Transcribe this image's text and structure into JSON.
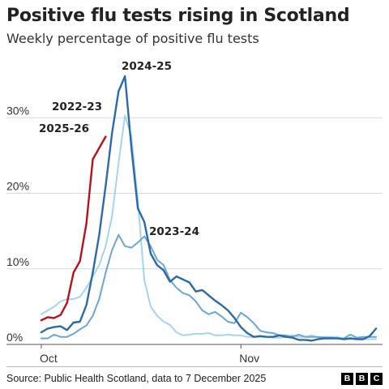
{
  "title": "Positive flu tests rising in Scotland",
  "subtitle": "Weekly percentage of positive flu tests",
  "source": "Source: Public Health Scotland, data to 7 December 2025",
  "logo": [
    "B",
    "B",
    "C"
  ],
  "chart_data": {
    "type": "line",
    "title": "Positive flu tests rising in Scotland",
    "subtitle": "Weekly percentage of positive flu tests",
    "x_unit": "days since 1 Oct",
    "x_ticks": [
      {
        "label": "Oct",
        "x": 0
      },
      {
        "label": "Nov",
        "x": 31
      }
    ],
    "xlim": [
      -1,
      53
    ],
    "ylim": [
      0,
      37
    ],
    "y_ticks": [
      {
        "label": "0%",
        "y": 0
      },
      {
        "label": "10%",
        "y": 10
      },
      {
        "label": "20%",
        "y": 20
      },
      {
        "label": "30%",
        "y": 30
      }
    ],
    "grid": true,
    "series": [
      {
        "name": "2022-23",
        "color": "#a6d3f0",
        "width": 2,
        "points": [
          [
            0,
            4
          ],
          [
            2,
            5
          ],
          [
            3,
            5.7
          ],
          [
            4,
            6
          ],
          [
            5,
            6
          ],
          [
            6,
            6.3
          ],
          [
            7,
            7.5
          ],
          [
            8,
            9
          ],
          [
            9,
            10.5
          ],
          [
            10,
            13
          ],
          [
            11,
            17
          ],
          [
            12,
            24
          ],
          [
            13,
            30.3
          ],
          [
            14,
            27.5
          ],
          [
            15,
            19
          ],
          [
            16,
            8.5
          ],
          [
            17,
            5
          ],
          [
            18,
            3.8
          ],
          [
            19,
            3
          ],
          [
            20,
            2.6
          ],
          [
            21,
            1.6
          ],
          [
            22,
            1.2
          ],
          [
            23,
            1.3
          ],
          [
            24,
            1.4
          ],
          [
            25,
            1.4
          ],
          [
            26,
            1.5
          ],
          [
            27,
            1.2
          ],
          [
            28,
            1.2
          ],
          [
            29,
            1.3
          ],
          [
            30,
            1.2
          ],
          [
            31,
            1.2
          ],
          [
            32,
            1
          ],
          [
            33,
            1
          ],
          [
            34,
            1
          ],
          [
            35,
            1
          ],
          [
            36,
            0.9
          ],
          [
            37,
            0.9
          ],
          [
            38,
            1
          ],
          [
            39,
            1.2
          ],
          [
            40,
            1
          ],
          [
            41,
            1
          ],
          [
            42,
            1.2
          ],
          [
            43,
            0.9
          ],
          [
            44,
            1
          ],
          [
            45,
            1
          ],
          [
            46,
            1
          ],
          [
            47,
            0.7
          ],
          [
            48,
            0.7
          ],
          [
            49,
            0.8
          ],
          [
            50,
            0.7
          ],
          [
            51,
            0.7
          ],
          [
            52,
            0.7
          ]
        ]
      },
      {
        "name": "2023-24",
        "color": "#6aa7d6",
        "width": 2,
        "points": [
          [
            0,
            0.8
          ],
          [
            1,
            0.8
          ],
          [
            2,
            1.3
          ],
          [
            3,
            1
          ],
          [
            4,
            1
          ],
          [
            5,
            1.4
          ],
          [
            6,
            2
          ],
          [
            7,
            2.5
          ],
          [
            8,
            3.8
          ],
          [
            9,
            6
          ],
          [
            10,
            9.5
          ],
          [
            11,
            12.5
          ],
          [
            12,
            14.5
          ],
          [
            13,
            13
          ],
          [
            14,
            12.8
          ],
          [
            15,
            13.5
          ],
          [
            16,
            14.3
          ],
          [
            17,
            13
          ],
          [
            18,
            11.2
          ],
          [
            19,
            10.5
          ],
          [
            20,
            8.5
          ],
          [
            21,
            7.5
          ],
          [
            22,
            6.8
          ],
          [
            23,
            6.5
          ],
          [
            24,
            5.7
          ],
          [
            25,
            4.5
          ],
          [
            26,
            4
          ],
          [
            27,
            4.3
          ],
          [
            28,
            3.7
          ],
          [
            29,
            3
          ],
          [
            30,
            2.8
          ],
          [
            31,
            4.2
          ],
          [
            32,
            3.6
          ],
          [
            33,
            2.8
          ],
          [
            34,
            1.8
          ],
          [
            35,
            1.6
          ],
          [
            36,
            1.5
          ],
          [
            37,
            1.2
          ],
          [
            38,
            1.2
          ],
          [
            39,
            1
          ],
          [
            40,
            1.3
          ],
          [
            41,
            1
          ],
          [
            42,
            1
          ],
          [
            43,
            1
          ],
          [
            44,
            0.9
          ],
          [
            45,
            0.9
          ],
          [
            46,
            0.8
          ],
          [
            47,
            0.8
          ],
          [
            48,
            1.3
          ],
          [
            49,
            0.9
          ],
          [
            50,
            1
          ],
          [
            51,
            1
          ],
          [
            52,
            1
          ]
        ]
      },
      {
        "name": "2024-25",
        "color": "#2c6aa8",
        "width": 2.4,
        "points": [
          [
            0,
            1.6
          ],
          [
            1,
            2.1
          ],
          [
            2,
            2.3
          ],
          [
            3,
            2.4
          ],
          [
            4,
            1.9
          ],
          [
            5,
            2.9
          ],
          [
            6,
            3
          ],
          [
            7,
            5.2
          ],
          [
            8,
            9.5
          ],
          [
            9,
            14.5
          ],
          [
            10,
            21
          ],
          [
            11,
            28
          ],
          [
            12,
            33.5
          ],
          [
            13,
            35.5
          ],
          [
            14,
            26
          ],
          [
            15,
            18
          ],
          [
            16,
            16.2
          ],
          [
            17,
            12
          ],
          [
            18,
            10.5
          ],
          [
            19,
            9.8
          ],
          [
            20,
            8.3
          ],
          [
            21,
            9
          ],
          [
            22,
            8.6
          ],
          [
            23,
            8.2
          ],
          [
            24,
            7
          ],
          [
            25,
            7.2
          ],
          [
            26,
            6.5
          ],
          [
            27,
            5.8
          ],
          [
            28,
            5.2
          ],
          [
            29,
            4.5
          ],
          [
            30,
            3.5
          ],
          [
            31,
            2.3
          ],
          [
            32,
            1.5
          ],
          [
            33,
            1
          ],
          [
            34,
            1.1
          ],
          [
            35,
            1
          ],
          [
            36,
            1
          ],
          [
            37,
            1.2
          ],
          [
            38,
            1
          ],
          [
            39,
            0.9
          ],
          [
            40,
            0.6
          ],
          [
            41,
            0.6
          ],
          [
            42,
            0.5
          ],
          [
            43,
            0.7
          ],
          [
            44,
            0.8
          ],
          [
            45,
            0.8
          ],
          [
            46,
            0.8
          ],
          [
            47,
            0.7
          ],
          [
            48,
            0.8
          ],
          [
            49,
            0.7
          ],
          [
            50,
            0.7
          ],
          [
            51,
            1.1
          ],
          [
            52,
            2.1
          ]
        ]
      },
      {
        "name": "2025-26",
        "color": "#b5121b",
        "width": 2.4,
        "points": [
          [
            0,
            3.2
          ],
          [
            1,
            3.6
          ],
          [
            2,
            3.5
          ],
          [
            3,
            3.9
          ],
          [
            4,
            5.5
          ],
          [
            5,
            9.5
          ],
          [
            6,
            11
          ],
          [
            7,
            16
          ],
          [
            8,
            24.5
          ],
          [
            9,
            26
          ],
          [
            10,
            27.5
          ]
        ]
      }
    ],
    "annotations": [
      {
        "text": "2024-25",
        "series": "2024-25"
      },
      {
        "text": "2022-23",
        "series": "2022-23"
      },
      {
        "text": "2025-26",
        "series": "2025-26"
      },
      {
        "text": "2023-24",
        "series": "2023-24"
      }
    ]
  }
}
